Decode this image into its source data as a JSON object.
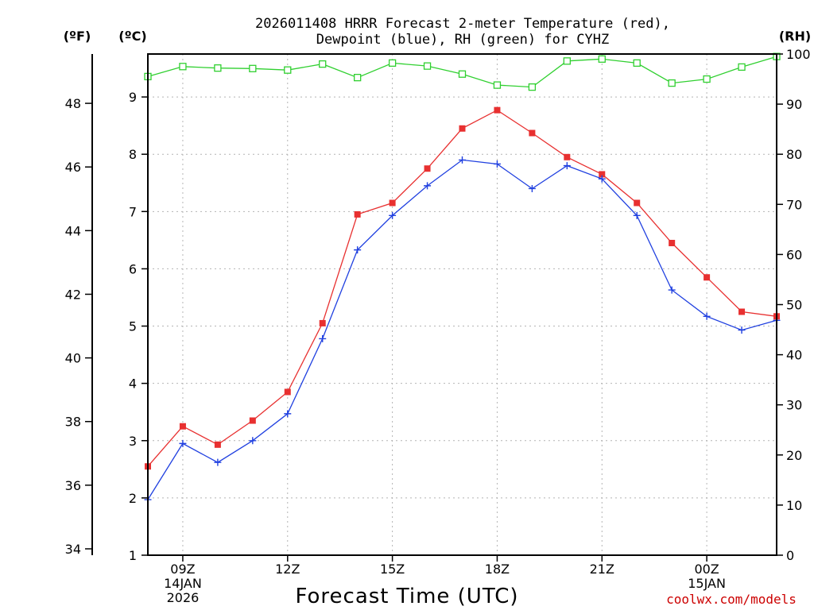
{
  "chart_data": {
    "type": "line",
    "title": [
      "2026011408 HRRR Forecast 2-meter Temperature (red),",
      "Dewpoint (blue), RH (green) for CYHZ"
    ],
    "xlabel": "Forecast Time (UTC)",
    "credit": "coolwx.com/models",
    "units": {
      "fahrenheit": "(ºF)",
      "celsius": "(ºC)",
      "rh": "(RH)"
    },
    "x_hours": [
      8,
      9,
      10,
      11,
      12,
      13,
      14,
      15,
      16,
      17,
      18,
      19,
      20,
      21,
      22,
      23,
      24,
      25,
      26
    ],
    "xlim": [
      8,
      26
    ],
    "x_ticks": [
      {
        "hour": 9,
        "lines": [
          "09Z",
          "14JAN",
          "2026"
        ]
      },
      {
        "hour": 12,
        "lines": [
          "12Z"
        ]
      },
      {
        "hour": 15,
        "lines": [
          "15Z"
        ]
      },
      {
        "hour": 18,
        "lines": [
          "18Z"
        ]
      },
      {
        "hour": 21,
        "lines": [
          "21Z"
        ]
      },
      {
        "hour": 24,
        "lines": [
          "00Z",
          "15JAN"
        ]
      }
    ],
    "celsius_axis": {
      "ylim": [
        1,
        9.75
      ],
      "ticks": [
        "1",
        "2",
        "3",
        "4",
        "5",
        "6",
        "7",
        "8",
        "9"
      ]
    },
    "fahrenheit_axis": {
      "ylim": [
        33.8,
        49.55
      ],
      "ticks": [
        "34",
        "36",
        "38",
        "40",
        "42",
        "44",
        "46",
        "48"
      ]
    },
    "rh_axis": {
      "ylim": [
        0,
        100
      ],
      "ticks": [
        "0",
        "10",
        "20",
        "30",
        "40",
        "50",
        "60",
        "70",
        "80",
        "90",
        "100"
      ]
    },
    "series": [
      {
        "name": "2-meter Temperature",
        "color": "#e83030",
        "marker": "square",
        "axis": "celsius",
        "values": [
          2.55,
          3.25,
          2.93,
          3.35,
          3.85,
          5.05,
          6.95,
          7.15,
          7.75,
          8.45,
          8.77,
          8.37,
          7.95,
          7.65,
          7.15,
          6.45,
          5.85,
          5.25,
          5.17
        ]
      },
      {
        "name": "Dewpoint",
        "color": "#2040e0",
        "marker": "plus",
        "axis": "celsius",
        "values": [
          1.97,
          2.95,
          2.62,
          3.0,
          3.47,
          4.78,
          6.33,
          6.93,
          7.45,
          7.9,
          7.83,
          7.4,
          7.8,
          7.57,
          6.93,
          5.63,
          5.17,
          4.93,
          5.1
        ]
      },
      {
        "name": "RH",
        "color": "#30d030",
        "marker": "open-square",
        "axis": "rh",
        "values": [
          95.5,
          97.5,
          97.2,
          97.1,
          96.8,
          98.0,
          95.3,
          98.2,
          97.6,
          96.0,
          93.8,
          93.4,
          98.6,
          99.0,
          98.2,
          94.2,
          95.0,
          97.4,
          99.5
        ]
      }
    ]
  }
}
